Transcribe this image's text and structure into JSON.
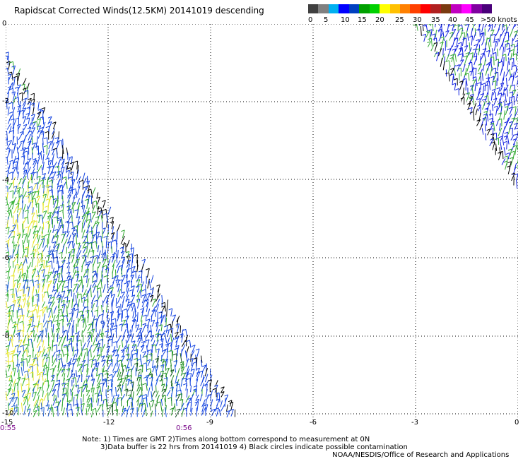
{
  "title": "Rapidscat Corrected Winds(12.5KM) 20141019 descending",
  "color_scale": {
    "units_label": ">50 knots",
    "colors": [
      "#404040",
      "#808080",
      "#00b0f0",
      "#0000ff",
      "#0040c0",
      "#00a000",
      "#00d000",
      "#ffff00",
      "#ffc000",
      "#ff8000",
      "#ff4000",
      "#ff0000",
      "#b02020",
      "#7a3a10",
      "#c000c0",
      "#ff00ff",
      "#8000a0",
      "#4a007a"
    ],
    "labels": [
      "0",
      "5",
      "10",
      "15",
      "20",
      "25",
      "30",
      "35",
      "40",
      "45"
    ]
  },
  "axes": {
    "y_labels": [
      "0",
      "-2",
      "-4",
      "-6",
      "-8",
      "-10"
    ],
    "x_labels": [
      "-15",
      "-12",
      "-9",
      "-6",
      "-3",
      "0"
    ]
  },
  "time_labels": [
    "0:55",
    "0:56"
  ],
  "notes": {
    "line1": "Note: 1) Times are GMT 2)Times along bottom correspond to measurement at 0N",
    "line2": "3)Data buffer is 22 hrs from 20141019 4) Black circles indicate possible contamination",
    "credit": "NOAA/NESDIS/Office of Research and Applications"
  }
}
